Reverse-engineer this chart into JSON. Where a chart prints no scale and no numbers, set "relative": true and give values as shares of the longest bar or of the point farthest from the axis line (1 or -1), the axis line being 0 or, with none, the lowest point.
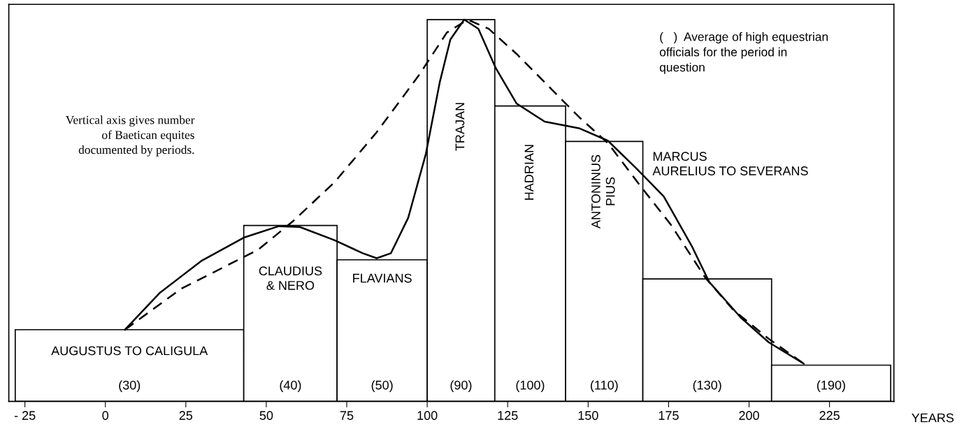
{
  "chart_data": {
    "type": "histogram",
    "relative": true,
    "xlabel": "YEARS",
    "bins": [
      -28,
      43,
      72,
      100,
      121,
      143,
      167,
      207,
      244
    ],
    "values": [
      0.188,
      0.461,
      0.371,
      1.0,
      0.774,
      0.681,
      0.321,
      0.095
    ],
    "color": "#ffffff",
    "xlim": [
      -30,
      245
    ],
    "xticks": [
      {
        "value": -25,
        "label": "- 25"
      },
      0,
      25,
      50,
      75,
      100,
      125,
      150,
      175,
      200,
      225
    ],
    "series": [
      {
        "type": "line",
        "color": "#000000",
        "line_style": "solid",
        "x": [
          6.1,
          17.0,
          30.0,
          43.0,
          53.9,
          60.4,
          71.3,
          80.0,
          84.3,
          88.7,
          94.1,
          99.6,
          103.9,
          107.2,
          111.5,
          115.9,
          121.3,
          127.8,
          136.5,
          147.4,
          156.1,
          164.8,
          173.5,
          182.2,
          187.6,
          197.4,
          206.1,
          217.0
        ],
        "values": [
          0.188,
          0.285,
          0.369,
          0.429,
          0.459,
          0.457,
          0.422,
          0.388,
          0.375,
          0.388,
          0.481,
          0.649,
          0.836,
          0.948,
          1.0,
          0.976,
          0.873,
          0.78,
          0.733,
          0.715,
          0.683,
          0.612,
          0.537,
          0.407,
          0.313,
          0.22,
          0.155,
          0.099
        ]
      },
      {
        "type": "line",
        "color": "#000000",
        "line_style": "dashed",
        "x": [
          6.1,
          23.5,
          47.4,
          58.3,
          71.3,
          84.3,
          97.4,
          106.1,
          112.6,
          119.1,
          127.8,
          138.7,
          147.4,
          156.1,
          167.0,
          175.7,
          186.5,
          195.2,
          206.1,
          217.0
        ],
        "values": [
          0.188,
          0.295,
          0.397,
          0.472,
          0.575,
          0.705,
          0.854,
          0.966,
          1.0,
          0.976,
          0.91,
          0.817,
          0.743,
          0.677,
          0.556,
          0.463,
          0.323,
          0.239,
          0.164,
          0.099
        ]
      }
    ],
    "annotations": [
      "AUGUSTUS TO CALIGULA",
      "CLAUDIUS\n& NERO",
      "FLAVIANS",
      "TRAJAN",
      "HADRIAN",
      "ANTONINUS\nPIUS",
      "MARCUS\nAURELIUS TO SEVERANS",
      "(30)",
      "(40)",
      "(50)",
      "(90)",
      "(100)",
      "(110)",
      "(130)",
      "(190)",
      "(   )  Average of high equestrian\nofficials for the period in\nquestion",
      "Vertical axis gives number\nof Baetican equites\ndocumented by periods."
    ]
  }
}
